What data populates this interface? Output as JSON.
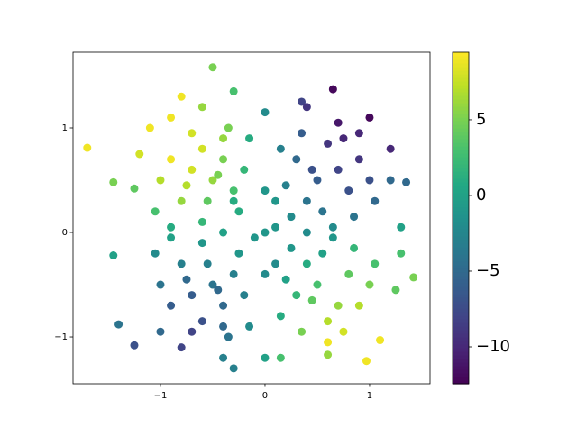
{
  "chart_data": {
    "type": "scatter",
    "colormap": "viridis",
    "x": [
      -1.7,
      -0.5,
      -0.8,
      -0.3,
      0.35,
      0.65,
      1.0,
      1.2,
      1.35,
      1.42,
      1.1,
      0.97,
      -0.3,
      -0.4,
      -1.25,
      -1.4,
      -1.45,
      -1.45,
      -1.25,
      -1.2,
      -1.1,
      -0.9,
      1.3,
      1.25,
      0.6,
      0.15,
      0.0,
      -0.8,
      -1.0,
      1.3,
      1.2,
      0.9,
      0.4,
      0.0,
      -0.6,
      -0.5,
      -0.7,
      -0.4,
      -0.8,
      -0.3,
      -0.6,
      -0.9,
      -0.2,
      -0.55,
      -1.0,
      -0.4,
      -0.7,
      -1.05,
      -0.25,
      -0.6,
      -0.9,
      -0.35,
      -0.15,
      -0.75,
      -0.45,
      0.5,
      0.7,
      0.3,
      0.6,
      0.8,
      0.4,
      0.9,
      0.2,
      0.55,
      1.0,
      0.75,
      0.35,
      0.15,
      1.05,
      0.65,
      0.25,
      0.85,
      0.1,
      0.45,
      0.7,
      0.5,
      0.7,
      0.3,
      0.6,
      0.8,
      0.4,
      0.9,
      0.2,
      0.55,
      1.0,
      0.75,
      0.35,
      0.15,
      1.05,
      0.65,
      0.25,
      0.85,
      0.1,
      0.45,
      0.6,
      -0.5,
      -0.7,
      -0.4,
      -0.8,
      -0.3,
      -0.6,
      -0.9,
      -0.2,
      -0.55,
      -1.0,
      -0.4,
      -0.7,
      -1.05,
      -0.25,
      -0.6,
      -0.9,
      -0.35,
      -0.15,
      -0.75,
      -0.45,
      0,
      0.1,
      -0.1,
      0,
      0,
      0.4,
      -0.4,
      -0.3
    ],
    "y": [
      0.81,
      1.58,
      1.3,
      1.35,
      1.25,
      1.37,
      1.1,
      0.8,
      0.48,
      -0.43,
      -1.03,
      -1.23,
      -1.3,
      -1.2,
      -1.08,
      -0.88,
      -0.22,
      0.48,
      0.42,
      0.75,
      1.0,
      1.1,
      -0.2,
      -0.55,
      -1.17,
      -1.2,
      -1.2,
      -1.1,
      -0.95,
      0.05,
      0.5,
      0.95,
      1.2,
      1.15,
      1.2,
      0.5,
      0.6,
      0.7,
      0.3,
      0.4,
      0.8,
      0.7,
      0.6,
      0.3,
      0.5,
      0.9,
      0.95,
      0.2,
      0.2,
      0.1,
      0.05,
      1.0,
      0.9,
      0.45,
      0.55,
      0.5,
      0.6,
      0.7,
      0.85,
      0.4,
      0.3,
      0.7,
      0.45,
      0.2,
      0.5,
      0.9,
      0.95,
      0.8,
      0.3,
      0.05,
      0.15,
      0.15,
      0.3,
      0.6,
      1.05,
      -0.5,
      -0.7,
      -0.6,
      -0.85,
      -0.4,
      -0.3,
      -0.7,
      -0.45,
      -0.2,
      -0.5,
      -0.95,
      -0.95,
      -0.8,
      -0.3,
      -0.05,
      -0.15,
      -0.15,
      -0.3,
      -0.65,
      -1.05,
      -0.5,
      -0.6,
      -0.7,
      -0.3,
      -0.4,
      -0.85,
      -0.7,
      -0.6,
      -0.3,
      -0.5,
      -0.9,
      -0.95,
      -0.2,
      -0.2,
      -0.1,
      -0.05,
      -1.0,
      -0.9,
      -0.45,
      -0.55,
      0,
      0.05,
      -0.05,
      0.4,
      -0.4,
      0,
      0,
      0.3
    ],
    "c": [
      9,
      5,
      9,
      3,
      -8,
      -12,
      -12,
      -10,
      -5,
      5,
      9,
      9,
      -3,
      -3,
      -7,
      -4,
      0,
      5,
      4,
      8,
      9,
      9,
      3,
      4,
      6,
      3,
      0,
      -8,
      -5,
      0,
      -5,
      -10,
      -9,
      -2,
      6,
      6,
      8,
      5,
      6,
      3,
      8,
      9,
      2,
      4,
      7,
      6,
      8,
      3,
      1,
      2,
      1,
      5,
      1,
      7,
      5,
      -6,
      -8,
      -5,
      -9,
      -7,
      -4,
      -9,
      -3,
      -4,
      -7,
      -10,
      -6,
      -3,
      -5,
      -2,
      -2,
      -4,
      -1,
      -7,
      -11,
      3,
      6,
      2,
      7,
      4,
      1,
      7,
      0,
      0,
      5,
      8,
      5,
      1,
      3,
      -1,
      -1,
      2,
      -2,
      4,
      9,
      -4,
      -6,
      -5,
      -3,
      -3,
      -7,
      -6,
      -3,
      -3,
      -4,
      -5,
      -8,
      -2,
      -1,
      -1,
      0,
      -4,
      -2,
      -5,
      -5,
      -1,
      -1,
      -1,
      -1,
      -2,
      -2,
      0,
      1
    ],
    "xlim": [
      -1.836,
      1.578
    ],
    "ylim": [
      -1.448,
      1.724
    ],
    "xticks": [
      {
        "value": -1,
        "label": "−1"
      },
      0,
      1
    ],
    "yticks": [
      {
        "value": -1,
        "label": "−1"
      },
      0,
      1
    ],
    "colorbar": {
      "lim": [
        -12.44,
        9.46
      ],
      "ticks": [
        {
          "value": -10,
          "label": "−10"
        },
        {
          "value": -5,
          "label": "−5"
        },
        0,
        5
      ]
    }
  }
}
